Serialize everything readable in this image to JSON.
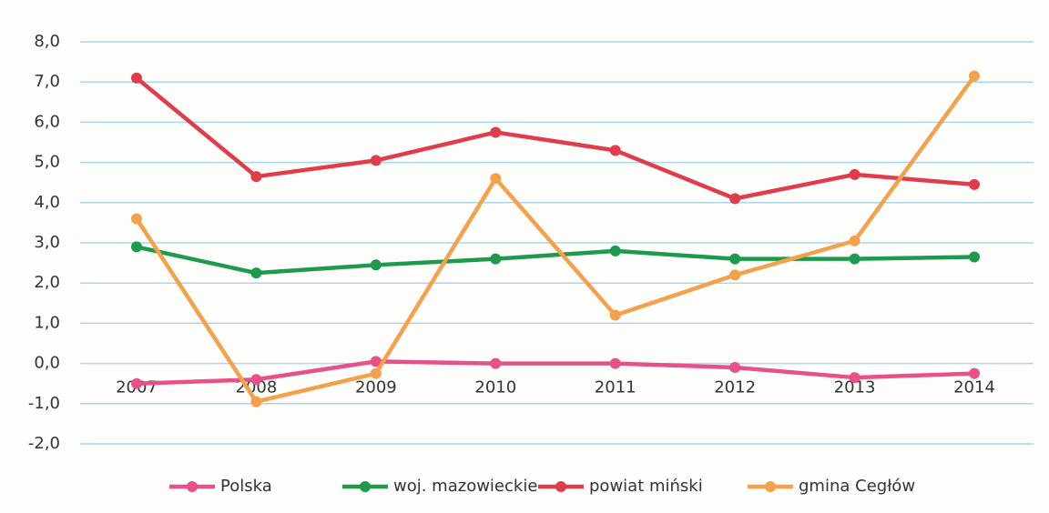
{
  "chart_data": {
    "type": "line",
    "categories": [
      "2007",
      "2008",
      "2009",
      "2010",
      "2011",
      "2012",
      "2013",
      "2014"
    ],
    "series": [
      {
        "name": "Polska",
        "color": "#e8508a",
        "values": [
          -0.5,
          -0.4,
          0.05,
          0.0,
          0.0,
          -0.1,
          -0.35,
          -0.25
        ]
      },
      {
        "name": "woj. mazowieckie",
        "color": "#1e9a4c",
        "values": [
          2.9,
          2.25,
          2.45,
          2.6,
          2.8,
          2.6,
          2.6,
          2.65
        ]
      },
      {
        "name": "powiat miński",
        "color": "#e03c4a",
        "values": [
          7.1,
          4.65,
          5.05,
          5.75,
          5.3,
          4.1,
          4.7,
          4.45
        ]
      },
      {
        "name": "gmina Cegłów",
        "color": "#f5a04a",
        "values": [
          3.6,
          -0.95,
          -0.25,
          4.6,
          1.2,
          2.2,
          3.05,
          7.15
        ]
      }
    ],
    "ylim": [
      -2,
      8
    ],
    "yticks": [
      {
        "value": -2,
        "label": "-2,0"
      },
      {
        "value": -1,
        "label": "-1,0"
      },
      {
        "value": 0,
        "label": "0,0"
      },
      {
        "value": 1,
        "label": "1,0"
      },
      {
        "value": 2,
        "label": "2,0"
      },
      {
        "value": 3,
        "label": "3,0"
      },
      {
        "value": 4,
        "label": "4,0"
      },
      {
        "value": 5,
        "label": "5,0"
      },
      {
        "value": 6,
        "label": "6,0"
      },
      {
        "value": 7,
        "label": "7,0"
      },
      {
        "value": 8,
        "label": "8,0"
      }
    ],
    "grid": true,
    "legend": "bottom"
  }
}
